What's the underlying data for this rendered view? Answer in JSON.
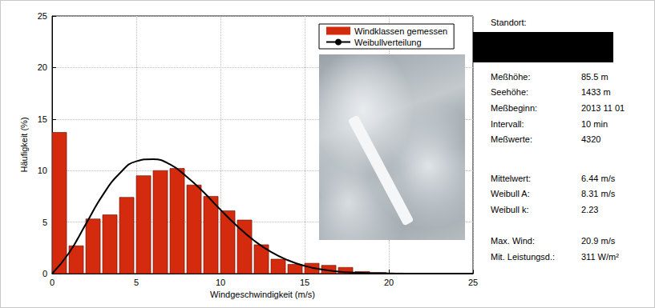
{
  "chart_data": {
    "type": "histogram",
    "xlabel": "Windgeschwindigkeit (m/s)",
    "ylabel": "Häufigkeit (%)",
    "xlim": [
      0,
      25
    ],
    "xticks": [
      0,
      5,
      10,
      15,
      20,
      25
    ],
    "ylim": [
      0,
      25
    ],
    "yticks": [
      0,
      5,
      10,
      15,
      20,
      25
    ],
    "grid": true,
    "legend": "upper right",
    "series": [
      {
        "name": "Windklassen gemessen",
        "type": "bar",
        "color": "#d42a0e",
        "bins": [
          0,
          1,
          2,
          3,
          4,
          5,
          6,
          7,
          8,
          9,
          10,
          11,
          12,
          13,
          14,
          15,
          16,
          17,
          18,
          19,
          20,
          21
        ],
        "values": [
          13.7,
          2.7,
          5.3,
          5.7,
          7.4,
          9.5,
          10.0,
          10.2,
          8.6,
          7.5,
          6.1,
          5.2,
          2.8,
          1.4,
          0.9,
          1.0,
          0.8,
          0.6,
          0.2,
          0.1,
          0.05
        ]
      },
      {
        "name": "Weibullverteilung",
        "type": "line",
        "color": "#000000",
        "x": [
          0,
          1,
          2,
          3,
          4,
          5,
          6,
          7,
          8,
          9,
          10,
          11,
          12,
          13,
          14,
          15,
          16,
          17,
          18,
          19,
          20,
          21,
          22,
          23,
          24,
          25
        ],
        "values": [
          0,
          2.0,
          4.8,
          7.6,
          9.7,
          10.9,
          11.1,
          10.6,
          9.4,
          7.9,
          6.2,
          4.6,
          3.2,
          2.1,
          1.3,
          0.75,
          0.4,
          0.2,
          0.1,
          0.05,
          0.02,
          0,
          0,
          0,
          0,
          0
        ]
      }
    ]
  },
  "panel": {
    "rows": [
      {
        "label": "Standort:",
        "value": null
      },
      {
        "label": "Meßhöhe:",
        "value": "85.5 m"
      },
      {
        "label": "Seehöhe:",
        "value": "1433 m"
      },
      {
        "label": "Meßbeginn:",
        "value": "2013 11 01"
      },
      {
        "label": "Intervall:",
        "value": "10 min"
      },
      {
        "label": "Meßwerte:",
        "value": "4320"
      },
      {
        "label": "Mittelwert:",
        "value": "6.44 m/s"
      },
      {
        "label": "Weibull A:",
        "value": "8.31 m/s"
      },
      {
        "label": "Weibull k:",
        "value": "2.23"
      },
      {
        "label": "Max. Wind:",
        "value": "20.9 m/s"
      },
      {
        "label": "Mit. Leistungsd.:",
        "value": "311 W/m²"
      }
    ]
  }
}
